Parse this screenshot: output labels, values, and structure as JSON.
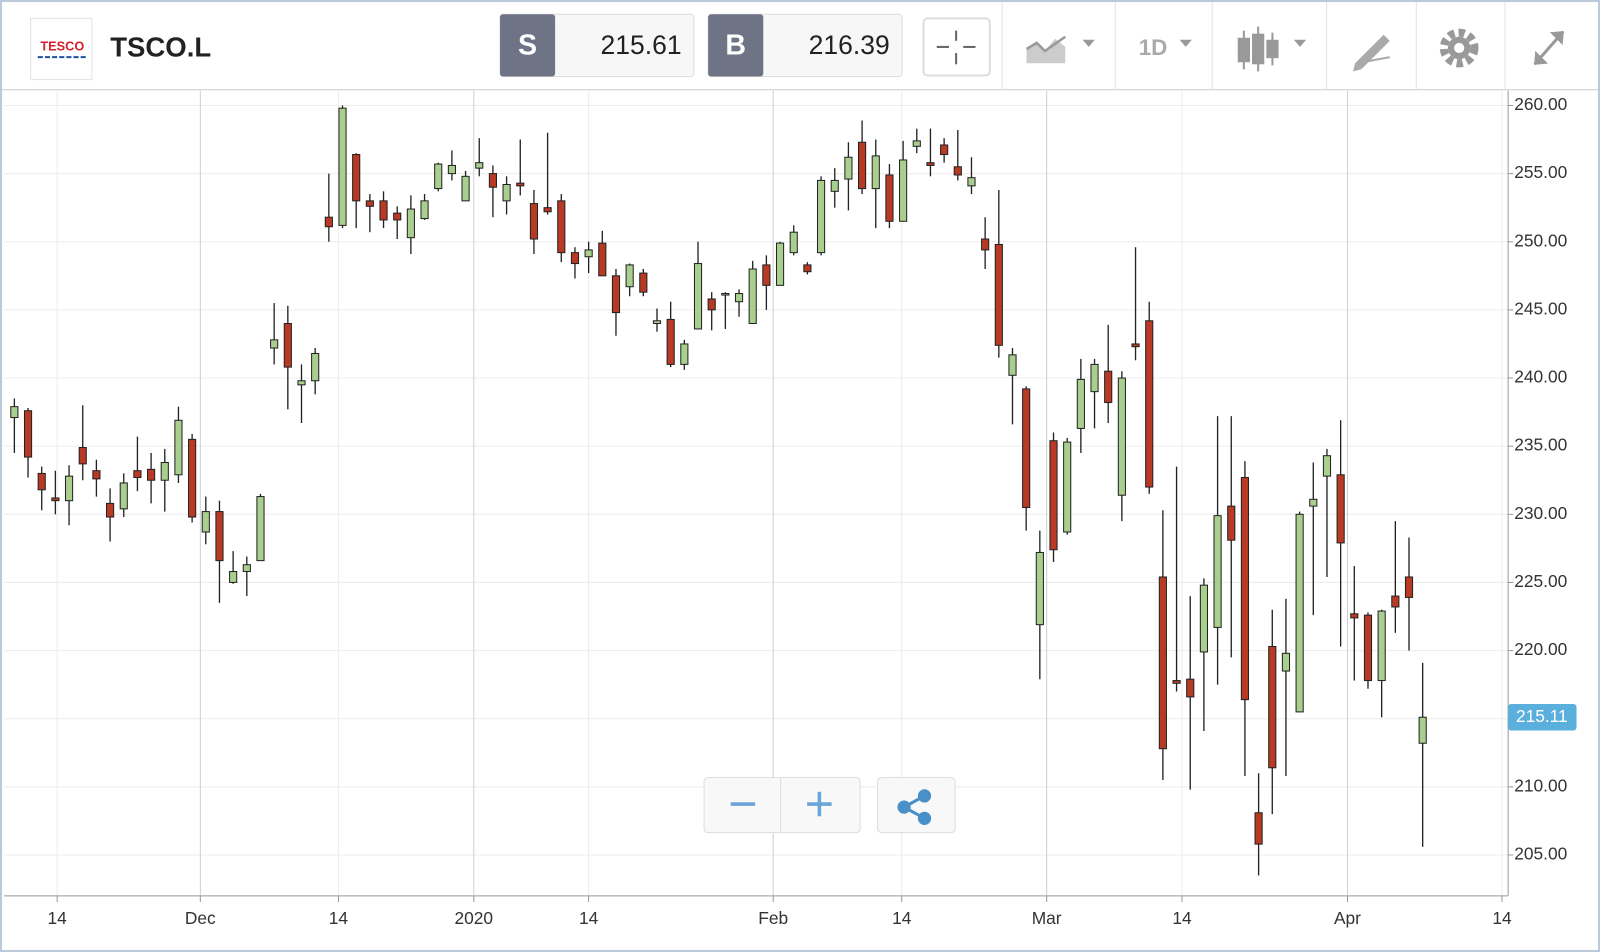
{
  "toolbar": {
    "logo": "TESCO",
    "symbol": "TSCO.L",
    "sell": {
      "label": "S",
      "price": 215.61
    },
    "buy": {
      "label": "B",
      "price": 216.39
    },
    "interval": "1D"
  },
  "chart_data": {
    "type": "candlestick",
    "up_color": "#a9cf8e",
    "down_color": "#b83a25",
    "grid": true,
    "open": [
      237.1,
      237.6,
      233.0,
      231.2,
      231.0,
      234.9,
      233.2,
      230.8,
      230.4,
      233.2,
      233.3,
      232.5,
      232.9,
      235.5,
      228.7,
      230.2,
      225.0,
      225.8,
      226.6,
      242.2,
      244.0,
      239.5,
      239.8,
      251.8,
      251.2,
      256.4,
      253.0,
      253.0,
      252.1,
      250.3,
      251.7,
      253.9,
      255.0,
      253.0,
      255.4,
      255.0,
      253.0,
      254.3,
      252.8,
      252.5,
      253.0,
      249.2,
      248.9,
      249.9,
      247.5,
      246.7,
      247.7,
      244.0,
      244.3,
      241.0,
      243.6,
      245.8,
      246.1,
      245.6,
      244.0,
      248.3,
      246.8,
      249.2,
      248.3,
      249.2,
      253.7,
      254.6,
      257.3,
      253.9,
      254.9,
      251.5,
      257.0,
      255.8,
      257.1,
      255.5,
      254.1,
      250.2,
      249.8,
      240.2,
      239.2,
      221.9,
      235.4,
      228.7,
      236.3,
      239.0,
      240.5,
      231.4,
      242.5,
      244.2,
      225.4,
      217.8,
      217.9,
      219.9,
      221.7,
      230.6,
      232.7,
      208.1,
      220.3,
      218.5,
      215.5,
      230.6,
      232.8,
      232.9,
      222.7,
      222.6,
      217.8,
      224.0,
      225.4,
      213.2
    ],
    "high": [
      238.5,
      237.8,
      233.5,
      233.2,
      233.6,
      238.0,
      234.0,
      231.9,
      233.0,
      235.7,
      234.5,
      234.8,
      237.9,
      235.9,
      231.3,
      231.0,
      227.3,
      226.9,
      231.5,
      245.5,
      245.3,
      241.0,
      242.2,
      255.0,
      260.0,
      256.5,
      253.5,
      253.7,
      252.6,
      253.4,
      253.5,
      255.8,
      256.7,
      255.2,
      257.6,
      255.6,
      254.8,
      257.5,
      253.8,
      258.0,
      253.5,
      249.6,
      250.0,
      250.8,
      248.0,
      248.4,
      248.0,
      245.1,
      245.6,
      242.8,
      250.0,
      246.3,
      246.3,
      246.5,
      248.6,
      249.0,
      250.0,
      251.2,
      248.5,
      254.8,
      255.4,
      257.3,
      258.9,
      257.5,
      255.7,
      257.4,
      258.3,
      258.3,
      257.6,
      258.2,
      256.2,
      251.8,
      253.8,
      242.2,
      239.4,
      228.8,
      236.0,
      235.6,
      241.4,
      241.4,
      243.9,
      240.5,
      249.6,
      245.6,
      230.3,
      233.5,
      224.0,
      225.3,
      237.2,
      237.2,
      233.9,
      211.0,
      223.0,
      223.8,
      230.2,
      233.8,
      234.8,
      236.9,
      226.2,
      222.8,
      223.0,
      229.5,
      228.3,
      219.1
    ],
    "low": [
      234.5,
      232.7,
      230.3,
      230.0,
      229.2,
      232.5,
      231.3,
      228.0,
      229.8,
      231.7,
      230.8,
      230.2,
      232.3,
      229.4,
      227.8,
      223.5,
      224.9,
      224.0,
      226.6,
      241.0,
      237.7,
      236.7,
      238.8,
      250.0,
      251.0,
      251.0,
      250.7,
      251.0,
      250.2,
      249.1,
      251.6,
      253.7,
      254.5,
      253.0,
      254.8,
      251.8,
      252.0,
      253.4,
      249.1,
      252.0,
      248.5,
      247.3,
      247.7,
      247.5,
      243.1,
      246.0,
      246.0,
      243.4,
      240.8,
      240.6,
      243.6,
      243.5,
      243.6,
      244.5,
      244.0,
      245.0,
      246.8,
      249.0,
      247.6,
      249.0,
      252.5,
      252.3,
      253.5,
      251.0,
      251.0,
      251.5,
      256.5,
      254.8,
      255.8,
      254.5,
      253.5,
      248.0,
      241.5,
      236.6,
      228.8,
      217.9,
      226.5,
      228.5,
      234.5,
      236.3,
      236.7,
      229.5,
      241.3,
      231.5,
      210.5,
      217.0,
      209.8,
      214.1,
      217.5,
      219.5,
      210.8,
      203.5,
      208.0,
      210.8,
      215.5,
      222.6,
      225.4,
      220.3,
      217.8,
      217.2,
      215.1,
      221.3,
      220.0,
      205.6
    ],
    "close": [
      237.9,
      234.2,
      231.8,
      231.0,
      232.8,
      233.7,
      232.6,
      229.8,
      232.3,
      232.7,
      232.5,
      233.8,
      236.9,
      229.8,
      230.2,
      226.6,
      225.8,
      226.3,
      231.3,
      242.8,
      240.8,
      239.8,
      241.8,
      251.1,
      259.8,
      253.0,
      252.6,
      251.6,
      251.6,
      252.4,
      253.0,
      255.7,
      255.6,
      254.8,
      255.8,
      254.0,
      254.2,
      254.1,
      250.2,
      252.2,
      249.2,
      248.4,
      249.4,
      247.5,
      244.8,
      248.3,
      246.3,
      244.2,
      241.0,
      242.5,
      248.4,
      245.0,
      246.2,
      246.2,
      248.0,
      246.8,
      249.9,
      250.7,
      247.8,
      254.5,
      254.5,
      256.2,
      253.9,
      256.3,
      251.5,
      256.0,
      257.4,
      255.6,
      256.4,
      254.9,
      254.7,
      249.4,
      242.4,
      241.7,
      230.5,
      227.2,
      227.4,
      235.3,
      239.9,
      241.0,
      238.2,
      240.0,
      242.3,
      232.0,
      212.8,
      217.6,
      216.6,
      224.8,
      229.9,
      228.1,
      216.4,
      205.8,
      211.4,
      219.8,
      230.0,
      231.1,
      234.3,
      227.9,
      222.4,
      217.8,
      222.9,
      223.2,
      223.9,
      215.11
    ],
    "current_price": 215.11,
    "ylim": [
      202,
      261
    ],
    "yticks": [
      {
        "value": 205,
        "label": "205.00"
      },
      {
        "value": 210,
        "label": "210.00"
      },
      {
        "value": 215,
        "label": "215.00"
      },
      {
        "value": 220,
        "label": "220.00"
      },
      {
        "value": 225,
        "label": "225.00"
      },
      {
        "value": 230,
        "label": "230.00"
      },
      {
        "value": 235,
        "label": "235.00"
      },
      {
        "value": 240,
        "label": "240.00"
      },
      {
        "value": 245,
        "label": "245.00"
      },
      {
        "value": 250,
        "label": "250.00"
      },
      {
        "value": 255,
        "label": "255.00"
      },
      {
        "value": 260,
        "label": "260.00"
      }
    ],
    "xlim": [
      -0.75,
      109.25
    ],
    "xticks": [
      {
        "value": 3.13,
        "label": "14"
      },
      {
        "value": 13.6,
        "label": "Dec"
      },
      {
        "value": 23.7,
        "label": "14"
      },
      {
        "value": 33.6,
        "label": "2020"
      },
      {
        "value": 42.0,
        "label": "14"
      },
      {
        "value": 55.5,
        "label": "Feb"
      },
      {
        "value": 64.9,
        "label": "14"
      },
      {
        "value": 75.5,
        "label": "Mar"
      },
      {
        "value": 85.4,
        "label": "14"
      },
      {
        "value": 97.5,
        "label": "Apr"
      },
      {
        "value": 108.8,
        "label": "14"
      }
    ]
  }
}
